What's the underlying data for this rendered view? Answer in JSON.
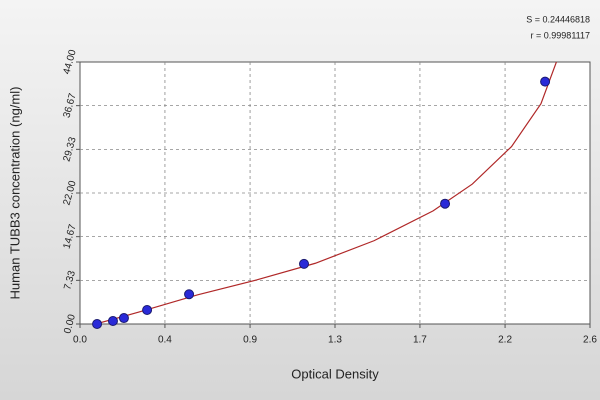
{
  "chart_data": {
    "type": "scatter",
    "xlabel": "Optical Density",
    "ylabel": "Human TUBB3 concentration (ng/ml)",
    "annotations": [
      "S = 0.24446818",
      "r = 0.99981117"
    ],
    "xlim": [
      0,
      2.6
    ],
    "ylim": [
      0,
      44
    ],
    "xticks": [
      {
        "value": 0,
        "label": "0.0"
      },
      {
        "value": 0.433,
        "label": "0.4"
      },
      {
        "value": 0.867,
        "label": "0.9"
      },
      1.3,
      {
        "value": 1.733,
        "label": "1.7"
      },
      {
        "value": 2.167,
        "label": "2.2"
      },
      2.6
    ],
    "yticks": [
      {
        "value": 0,
        "label": "0.00"
      },
      7.33,
      14.67,
      {
        "value": 22,
        "label": "22.00"
      },
      29.33,
      36.67,
      {
        "value": 44,
        "label": "44.00"
      }
    ],
    "grid": true,
    "series": [
      {
        "type": "scatter",
        "color": "#2a2ad8",
        "x": [
          0.087,
          0.168,
          0.224,
          0.342,
          0.556,
          1.142,
          1.861,
          2.371
        ],
        "values": [
          0,
          0.5,
          1.0,
          2.35,
          5.0,
          10.1,
          20.2,
          40.7
        ]
      },
      {
        "type": "line",
        "color": "#b02828",
        "x": [
          0.08,
          0.3,
          0.6,
          0.9,
          1.2,
          1.5,
          1.8,
          2.0,
          2.2,
          2.35,
          2.44
        ],
        "values": [
          0,
          2,
          4.9,
          7.4,
          10.2,
          14,
          19,
          23.5,
          29.8,
          37,
          45
        ]
      }
    ]
  }
}
